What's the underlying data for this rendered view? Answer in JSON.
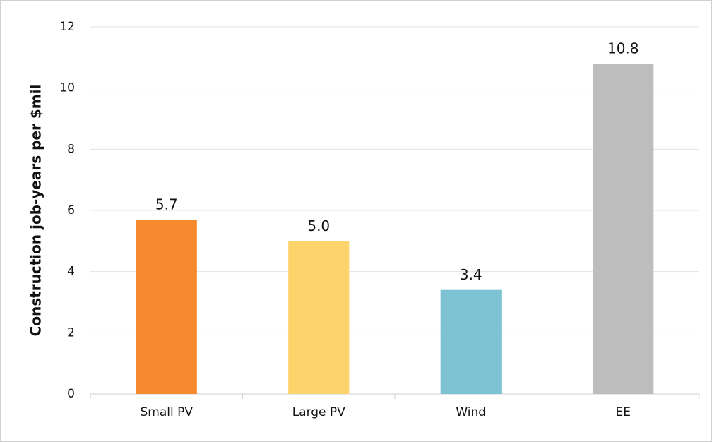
{
  "chart_data": {
    "type": "bar",
    "y_label": "Construction job-years per $mil",
    "categories": [
      "Small PV",
      "Large PV",
      "Wind",
      "EE"
    ],
    "values": [
      5.7,
      5.0,
      3.4,
      10.8
    ],
    "value_labels": [
      "5.7",
      "5.0",
      "3.4",
      "10.8"
    ],
    "colors": [
      "#f58a2f",
      "#fdd46b",
      "#7ec3d4",
      "#bdbdbd"
    ],
    "ylim": [
      0,
      12
    ],
    "yticks": [
      0,
      2,
      4,
      6,
      8,
      10,
      12
    ],
    "grid": true
  }
}
